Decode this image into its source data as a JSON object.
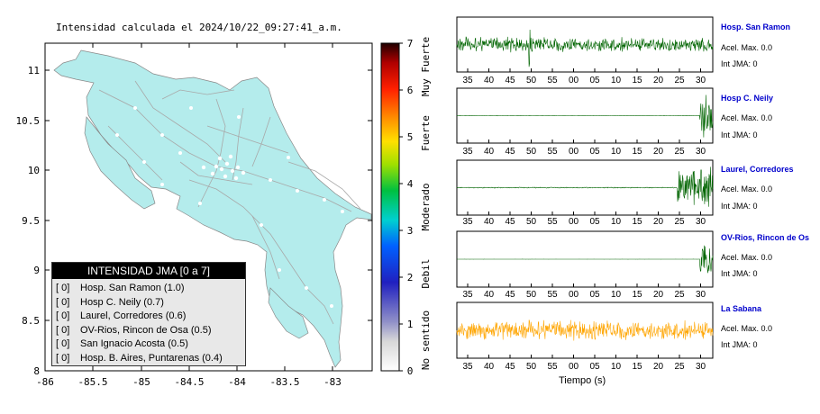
{
  "map": {
    "title": "Intensidad calculada el 2024/10/22_09:27:41_a.m.",
    "x_ticks": [
      "-86",
      "-85.5",
      "-85",
      "-84.5",
      "-84",
      "-83.5",
      "-83"
    ],
    "y_ticks": [
      "11",
      "10.5",
      "10",
      "9.5",
      "9",
      "8.5",
      "8"
    ],
    "land_color": "#b4ecec",
    "road_color": "#a8a8a8"
  },
  "legend": {
    "header": "INTENSIDAD JMA [0 a 7]",
    "items": [
      {
        "value": "[ 0]",
        "label": "Hosp. San Ramon (1.0)"
      },
      {
        "value": "[ 0]",
        "label": "Hosp C. Neily (0.7)"
      },
      {
        "value": "[ 0]",
        "label": "Laurel, Corredores (0.6)"
      },
      {
        "value": "[ 0]",
        "label": "OV-Rios, Rincon de Osa (0.5)"
      },
      {
        "value": "[ 0]",
        "label": "San Ignacio Acosta (0.5)"
      },
      {
        "value": "[ 0]",
        "label": "Hosp. B. Aires, Puntarenas (0.4)"
      }
    ]
  },
  "colorbar": {
    "ticks": [
      "7",
      "6",
      "5",
      "4",
      "3",
      "2",
      "1",
      "0"
    ],
    "categories": [
      "Muy Fuerte",
      "Fuerte",
      "Moderado",
      "Debil",
      "No sentido"
    ]
  },
  "stations": [
    {
      "name": "Hosp. San Ramon",
      "accel": "Acel. Max. 0.0",
      "jma": "Int JMA: 0",
      "color": "#006400",
      "ticks": [
        "35",
        "40",
        "45",
        "50",
        "55",
        "00",
        "05",
        "10",
        "15",
        "20",
        "25",
        "30"
      ]
    },
    {
      "name": "Hosp C. Neily",
      "accel": "Acel. Max. 0.0",
      "jma": "Int JMA: 0",
      "color": "#006400",
      "ticks": [
        "35",
        "40",
        "45",
        "50",
        "55",
        "00",
        "05",
        "10",
        "15",
        "20",
        "25",
        "30"
      ]
    },
    {
      "name": "Laurel, Corredores",
      "accel": "Acel. Max. 0.0",
      "jma": "Int JMA: 0",
      "color": "#006400",
      "ticks": [
        "35",
        "40",
        "45",
        "50",
        "55",
        "00",
        "05",
        "10",
        "15",
        "20",
        "25",
        "30"
      ]
    },
    {
      "name": "OV-Rios, Rincon de Os",
      "accel": "Acel. Max. 0.0",
      "jma": "Int JMA: 0",
      "color": "#006400",
      "ticks": [
        "35",
        "40",
        "45",
        "50",
        "55",
        "00",
        "05",
        "10",
        "15",
        "20",
        "25",
        "30"
      ]
    },
    {
      "name": "La Sabana",
      "accel": "Acel. Max. 0.0",
      "jma": "Int JMA: 0",
      "color": "#ffa500",
      "ticks": [
        "35",
        "40",
        "45",
        "50",
        "55",
        "00",
        "05",
        "10",
        "15",
        "20",
        "25",
        "30"
      ]
    }
  ],
  "time_axis_label": "Tiempo (s)"
}
